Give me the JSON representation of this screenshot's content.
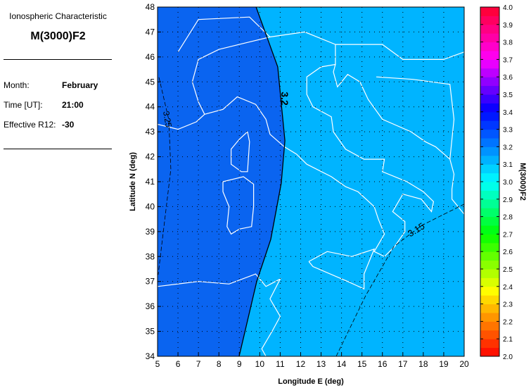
{
  "panel": {
    "subtitle": "Ionospheric Characteristic",
    "title": "M(3000)F2",
    "fields": [
      {
        "label": "Month:",
        "value": "February"
      },
      {
        "label": "Time [UT]:",
        "value": "21:00"
      },
      {
        "label": "Effective R12:",
        "value": "-30"
      }
    ]
  },
  "chart_data": {
    "type": "contour-map",
    "xlabel": "Longitude E (deg)",
    "ylabel": "Latitude N (deg)",
    "xlim": [
      5,
      20
    ],
    "ylim": [
      34,
      48
    ],
    "xticks": [
      5,
      6,
      7,
      8,
      9,
      10,
      11,
      12,
      13,
      14,
      15,
      16,
      17,
      18,
      19,
      20
    ],
    "yticks": [
      34,
      35,
      36,
      37,
      38,
      39,
      40,
      41,
      42,
      43,
      44,
      45,
      46,
      47,
      48
    ],
    "grid": true,
    "colorbar": {
      "label": "M(3000)F2",
      "range": [
        2.0,
        4.0
      ],
      "ticks": [
        "2.0",
        "2.1",
        "2.2",
        "2.3",
        "2.4",
        "2.5",
        "2.6",
        "2.7",
        "2.8",
        "2.9",
        "3.0",
        "3.1",
        "3.2",
        "3.3",
        "3.4",
        "3.5",
        "3.6",
        "3.7",
        "3.8",
        "3.9",
        "4.0"
      ],
      "hue_stops": [
        [
          2.0,
          0
        ],
        [
          2.35,
          55
        ],
        [
          2.7,
          120
        ],
        [
          3.0,
          180
        ],
        [
          3.4,
          238
        ],
        [
          3.7,
          300
        ],
        [
          4.0,
          350
        ]
      ]
    },
    "fill_colors": {
      "above_3.2": "#0a64f0",
      "below_3.2": "#00b4ff"
    },
    "contours": [
      {
        "label": "3.2",
        "style": "solid",
        "points": [
          [
            9.82,
            48
          ],
          [
            10.88,
            45.6
          ],
          [
            11.23,
            42.64
          ],
          [
            11.05,
            40.94
          ],
          [
            10.54,
            38.69
          ],
          [
            9.85,
            37.0
          ],
          [
            8.99,
            34.0
          ]
        ]
      },
      {
        "label": "3.25",
        "style": "dashed",
        "points": [
          [
            5.07,
            45.18
          ],
          [
            5.55,
            43.48
          ],
          [
            5.65,
            41.5
          ],
          [
            5.28,
            38.97
          ],
          [
            5.03,
            37.27
          ]
        ]
      },
      {
        "label": "3.15",
        "style": "dashed",
        "points": [
          [
            13.74,
            34
          ],
          [
            15.18,
            36.43
          ],
          [
            16.56,
            38.4
          ],
          [
            17.93,
            39.25
          ],
          [
            20,
            40.1
          ]
        ]
      }
    ]
  }
}
